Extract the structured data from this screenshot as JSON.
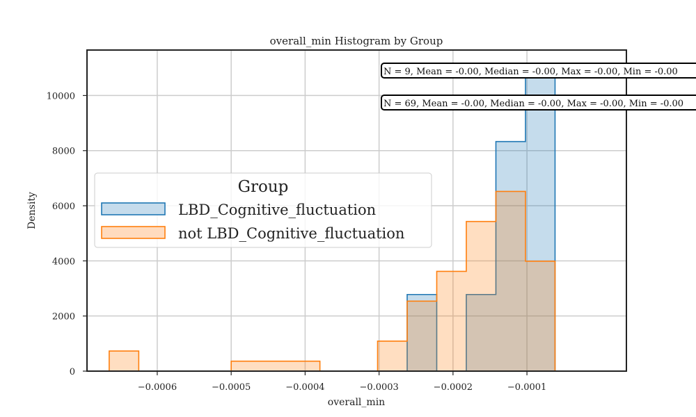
{
  "chart_data": {
    "type": "histogram",
    "title": "overall_min Histogram by Group",
    "xlabel": "overall_min",
    "ylabel": "Density",
    "xlim": [
      -0.000695,
      3.45e-05
    ],
    "ylim": [
      0,
      11650
    ],
    "x_ticks": [
      -0.0006,
      -0.0005,
      -0.0004,
      -0.0003,
      -0.0002,
      -0.0001
    ],
    "x_tick_labels": [
      "−0.0006",
      "−0.0005",
      "−0.0004",
      "−0.0003",
      "−0.0002",
      "−0.0001"
    ],
    "y_ticks": [
      0,
      2000,
      4000,
      6000,
      8000,
      10000
    ],
    "y_tick_labels": [
      "0",
      "2000",
      "4000",
      "6000",
      "8000",
      "10000"
    ],
    "grid": true,
    "legend": {
      "title": "Group",
      "placement": "center-left"
    },
    "series": [
      {
        "name": "LBD_Cognitive_fluctuation",
        "color": "#1f77b4",
        "fill": "#c6dcec",
        "bins": [
          {
            "x0": -0.000262,
            "x1": -0.000222,
            "value": 2780
          },
          {
            "x0": -0.000222,
            "x1": -0.000182,
            "value": 0
          },
          {
            "x0": -0.000182,
            "x1": -0.000142,
            "value": 2780
          },
          {
            "x0": -0.000142,
            "x1": -0.000102,
            "value": 8330
          },
          {
            "x0": -0.000102,
            "x1": -6.2e-05,
            "value": 11100
          }
        ]
      },
      {
        "name": "not LBD_Cognitive_fluctuation",
        "color": "#ff7f0e",
        "fill": "#ffdbbe",
        "bins": [
          {
            "x0": -0.000665,
            "x1": -0.000625,
            "value": 730
          },
          {
            "x0": -0.000625,
            "x1": -0.0005,
            "value": 0
          },
          {
            "x0": -0.0005,
            "x1": -0.00038,
            "value": 360
          },
          {
            "x0": -0.00038,
            "x1": -0.000302,
            "value": 0
          },
          {
            "x0": -0.000302,
            "x1": -0.000262,
            "value": 1090
          },
          {
            "x0": -0.000262,
            "x1": -0.000222,
            "value": 2540
          },
          {
            "x0": -0.000222,
            "x1": -0.000182,
            "value": 3620
          },
          {
            "x0": -0.000182,
            "x1": -0.000142,
            "value": 5430
          },
          {
            "x0": -0.000142,
            "x1": -0.000102,
            "value": 6520
          },
          {
            "x0": -0.000102,
            "x1": -6.2e-05,
            "value": 3990
          }
        ]
      }
    ],
    "annotations": [
      {
        "text": "N = 9, Mean = -0.00, Median = -0.00, Max = -0.00, Min = -0.00"
      },
      {
        "text": "N = 69, Mean = -0.00, Median = -0.00, Max = -0.00, Min = -0.00"
      }
    ]
  }
}
